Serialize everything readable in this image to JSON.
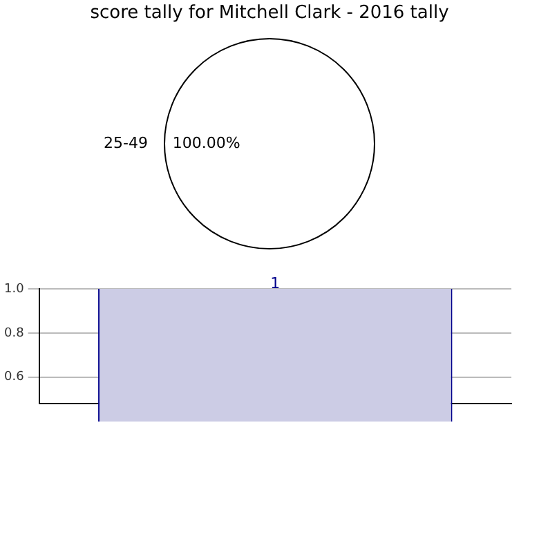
{
  "chart_data": [
    {
      "type": "pie",
      "title": "score tally for Mitchell Clark - 2016 tally",
      "categories": [
        "25-49"
      ],
      "values": [
        100
      ],
      "colors": [
        "#ffffff"
      ],
      "value_labels": [
        "100.00%"
      ],
      "legend": false
    },
    {
      "type": "bar",
      "categories": [
        null
      ],
      "values": [
        1
      ],
      "color": "#cccce5",
      "ylim": [
        0.48,
        1.0
      ],
      "yticks": [
        {
          "value": 0.6,
          "label": "0.6"
        },
        {
          "value": 0.8,
          "label": "0.8"
        },
        {
          "value": 1.0,
          "label": "1.0"
        }
      ],
      "grid": true,
      "data_labels": true,
      "legend": false
    }
  ]
}
